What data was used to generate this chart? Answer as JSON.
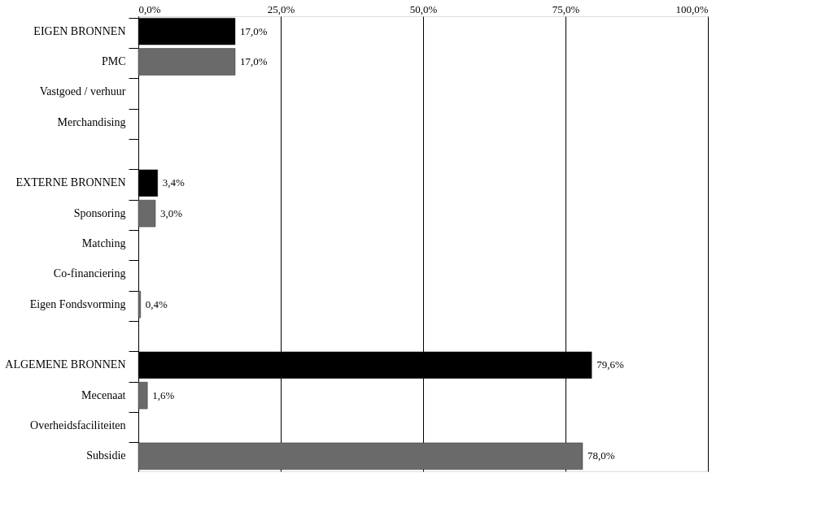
{
  "chart_data": {
    "type": "bar",
    "orientation": "horizontal",
    "categories": [
      "EIGEN BRONNEN",
      "PMC",
      "Vastgoed / verhuur",
      "Merchandising",
      null,
      "EXTERNE BRONNEN",
      "Sponsoring",
      "Matching",
      "Co-financiering",
      "Eigen Fondsvorming",
      null,
      "ALGEMENE BRONNEN",
      "Mecenaat",
      "Overheidsfaciliteiten",
      "Subsidie"
    ],
    "values": [
      17.0,
      17.0,
      null,
      null,
      null,
      3.4,
      3.0,
      null,
      null,
      0.4,
      null,
      79.6,
      1.6,
      null,
      78.0
    ],
    "colors": [
      "#000000",
      "#6a6a6a",
      "#6a6a6a",
      "#6a6a6a",
      "#6a6a6a",
      "#000000",
      "#6a6a6a",
      "#6a6a6a",
      "#6a6a6a",
      "#6a6a6a",
      "#6a6a6a",
      "#000000",
      "#6a6a6a",
      "#6a6a6a",
      "#6a6a6a"
    ],
    "value_labels": [
      "17,0%",
      "17,0%",
      null,
      null,
      null,
      "3,4%",
      "3,0%",
      null,
      null,
      "0,4%",
      null,
      "79,6%",
      "1,6%",
      null,
      "78,0%"
    ],
    "xlim": [
      0,
      100
    ],
    "xticks": [
      {
        "value": 0,
        "label": "0,0%"
      },
      {
        "value": 25,
        "label": "25,0%"
      },
      {
        "value": 50,
        "label": "50,0%"
      },
      {
        "value": 75,
        "label": "75,0%"
      },
      {
        "value": 100,
        "label": "100,0%"
      }
    ],
    "grid": "x"
  }
}
